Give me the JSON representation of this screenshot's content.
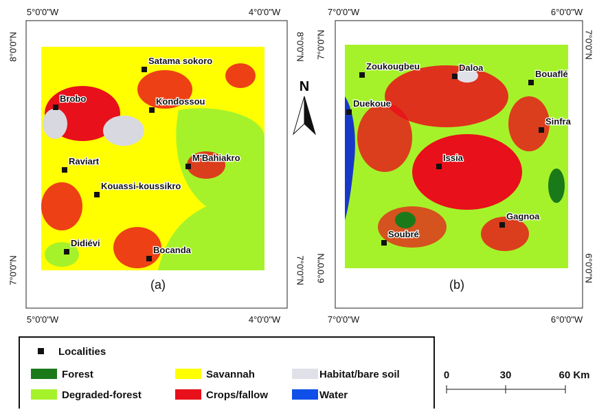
{
  "maps": [
    {
      "label": "(a)",
      "top_labels": [
        "5°0'0\"W",
        "4°0'0\"W"
      ],
      "bottom_labels": [
        "5°0'0\"W",
        "4°0'0\"W"
      ],
      "left_labels": [
        "8°0'0\"N",
        "7°0'0\"N"
      ],
      "right_labels": [
        "8°0'0\"N",
        "7°0'0\"N"
      ],
      "localities": [
        "Satama sokoro",
        "Brobo",
        "Kondossou",
        "Raviart",
        "M'Bahiakro",
        "Kouassi-koussikro",
        "Didiévi",
        "Bocanda"
      ]
    },
    {
      "label": "(b)",
      "top_labels": [
        "7°0'0\"W",
        "6°0'0\"W"
      ],
      "bottom_labels": [
        "7°0'0\"W",
        "6°0'0\"W"
      ],
      "left_labels": [
        "7°0'0\"N",
        "6°0'0\"N"
      ],
      "right_labels": [
        "7°0'0\"N",
        "6°0'0\"N"
      ],
      "localities": [
        "Zoukougbeu",
        "Daloa",
        "Bouaflé",
        "Duekoue",
        "Sinfra",
        "Issia",
        "Gagnoa",
        "Soubré"
      ]
    }
  ],
  "north": "N",
  "legend": [
    "Localities",
    "Forest",
    "Savannah",
    "Habitat/bare soil",
    "Degraded-forest",
    "Crops/fallow",
    "Water"
  ],
  "scale_bar": [
    "0",
    "30",
    "60 Km"
  ]
}
